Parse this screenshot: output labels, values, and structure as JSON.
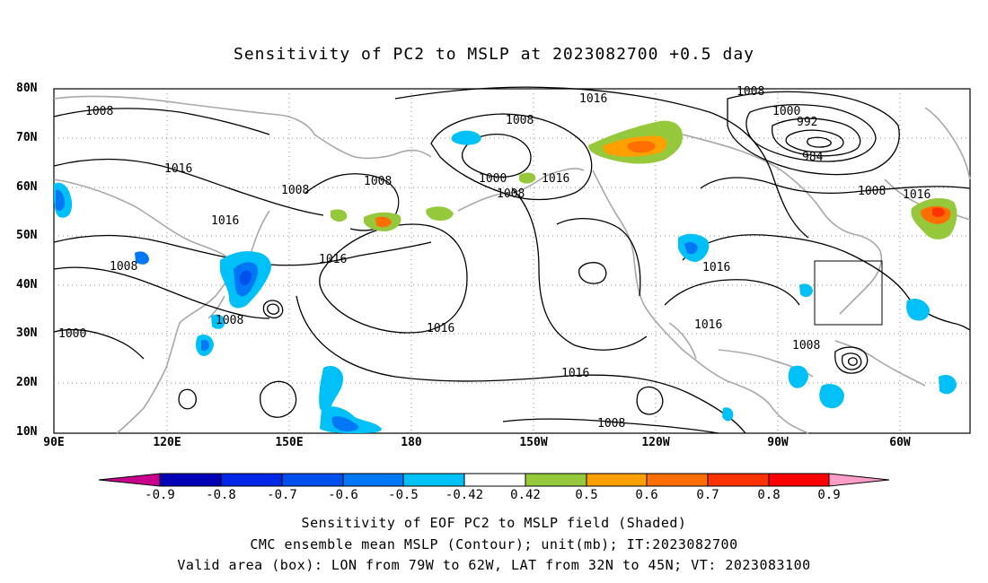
{
  "title": "Sensitivity of PC2 to MSLP at 2023082700 +0.5 day",
  "lat_labels": [
    "80N",
    "70N",
    "60N",
    "50N",
    "40N",
    "30N",
    "20N",
    "10N"
  ],
  "lon_labels": [
    "90E",
    "120E",
    "150E",
    "180",
    "150W",
    "120W",
    "90W",
    "60W"
  ],
  "contour_labels": [
    "1008",
    "1016",
    "1008",
    "1016",
    "1008",
    "1000",
    "1008",
    "1016",
    "1008",
    "1000",
    "1008",
    "1016",
    "1008",
    "1016",
    "1000",
    "992",
    "984",
    "1008",
    "1016",
    "1016",
    "1016",
    "1016",
    "1016",
    "1008",
    "1008",
    "1008"
  ],
  "colorbar": {
    "ticks": [
      "-0.9",
      "-0.8",
      "-0.7",
      "-0.6",
      "-0.5",
      "-0.42",
      "0.42",
      "0.5",
      "0.6",
      "0.7",
      "0.8",
      "0.9"
    ],
    "colors": [
      "#c8008c",
      "#0000b4",
      "#0028e6",
      "#0050f0",
      "#0078f5",
      "#00c0f8",
      "#ffffff",
      "#96c83c",
      "#ffa000",
      "#ff6e00",
      "#ff3200",
      "#ff0000",
      "#ff9ec8"
    ]
  },
  "footer": {
    "line1": "Sensitivity of EOF PC2 to MSLP field (Shaded)",
    "line2": "CMC ensemble mean MSLP (Contour); unit(mb); IT:2023082700",
    "line3": "Valid area (box): LON from 79W to 62W, LAT from 32N to 45N; VT: 2023083100"
  }
}
